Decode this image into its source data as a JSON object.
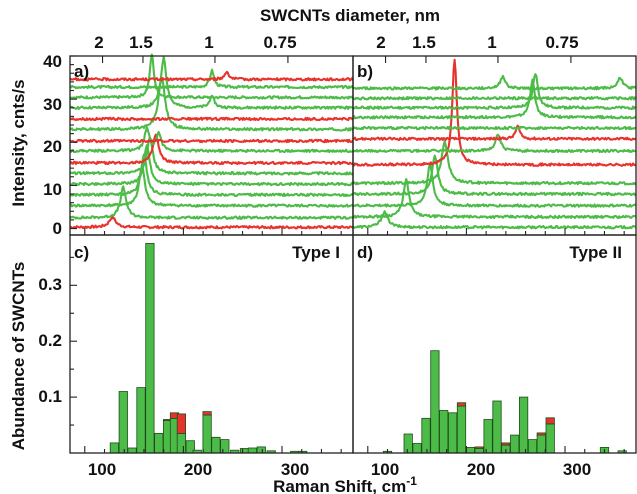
{
  "colors": {
    "green": "#4cbb47",
    "red": "#e8322c",
    "bar_edge": "#1f4d1c",
    "axis": "#222222"
  },
  "chart_data": [
    {
      "type": "line",
      "panel": "a)",
      "xlabel": "",
      "ylabel": "Intensity, cnts/s",
      "top_axis_title": "SWCNTs diameter, nm",
      "top_ticks": [
        "2",
        "1.5",
        "1",
        "0.75"
      ],
      "top_tick_positions_cm": [
        118,
        159,
        232,
        306
      ],
      "xlim": [
        85,
        372
      ],
      "ylim": [
        -1.5,
        40
      ],
      "y_ticks": [
        "0",
        "10",
        "20",
        "30",
        "40"
      ],
      "series": [
        {
          "color": "red",
          "baseline": 0.3,
          "peaks": [
            [
              128,
              2.3,
              4
            ]
          ]
        },
        {
          "color": "green",
          "baseline": 2.5,
          "peaks": [
            [
              139,
              7,
              3.5
            ]
          ]
        },
        {
          "color": "green",
          "baseline": 5.3,
          "peaks": [
            [
              158,
              9,
              3.5
            ]
          ]
        },
        {
          "color": "green",
          "baseline": 7.8,
          "peaks": [
            [
              160,
              9.5,
              3.5
            ]
          ]
        },
        {
          "color": "green",
          "baseline": 10.3,
          "peaks": [
            [
              163,
              9,
              3.5
            ]
          ]
        },
        {
          "color": "green",
          "baseline": 12.8,
          "peaks": [
            [
              166,
              8.5,
              3.5
            ]
          ]
        },
        {
          "color": "red",
          "baseline": 15.2,
          "peaks": [
            [
              172,
              6.5,
              3.5
            ]
          ]
        },
        {
          "color": "green",
          "baseline": 18.0,
          "peaks": [
            [
              163,
              5,
              3
            ],
            [
              175,
              4,
              3
            ]
          ]
        },
        {
          "color": "red",
          "baseline": 20.3,
          "peaks": []
        },
        {
          "color": "green",
          "baseline": 23.0,
          "peaks": [
            [
              178,
              12,
              4
            ]
          ]
        },
        {
          "color": "red",
          "baseline": 25.4,
          "peaks": []
        },
        {
          "color": "green",
          "baseline": 28.0,
          "peaks": [
            [
              180,
              11.5,
              3.5
            ],
            [
              229,
              3,
              2.5
            ]
          ]
        },
        {
          "color": "green",
          "baseline": 30.4,
          "peaks": [
            [
              168,
              10,
              2.5
            ]
          ]
        },
        {
          "color": "green",
          "baseline": 32.8,
          "peaks": [
            [
              229,
              3.8,
              2.5
            ]
          ]
        },
        {
          "color": "red",
          "baseline": 34.6,
          "peaks": [
            [
              244,
              1.8,
              2.5
            ]
          ]
        }
      ]
    },
    {
      "type": "line",
      "panel": "b)",
      "xlabel": "",
      "ylabel": "",
      "top_axis_title": "SWCNTs diameter, nm",
      "top_ticks": [
        "2",
        "1.5",
        "1",
        "0.75"
      ],
      "top_tick_positions_cm": [
        118,
        159,
        232,
        306
      ],
      "xlim": [
        85,
        372
      ],
      "ylim": [
        -1.5,
        40
      ],
      "series": [
        {
          "color": "green",
          "baseline": 0.3,
          "peaks": [
            [
              117,
              3.5,
              4
            ]
          ]
        },
        {
          "color": "green",
          "baseline": 2.7,
          "peaks": [
            [
              139,
              8.5,
              3.5
            ]
          ]
        },
        {
          "color": "green",
          "baseline": 5.3,
          "peaks": [
            [
              163,
              9.5,
              3.5
            ]
          ]
        },
        {
          "color": "green",
          "baseline": 8.0,
          "peaks": [
            [
              168,
              9,
              3.5
            ]
          ]
        },
        {
          "color": "green",
          "baseline": 10.5,
          "peaks": [
            [
              178,
              9.5,
              4
            ]
          ]
        },
        {
          "color": "red",
          "baseline": 14.8,
          "peaks": [
            [
              188,
              24.5,
              2.8
            ]
          ]
        },
        {
          "color": "green",
          "baseline": 18.0,
          "peaks": [
            [
              232,
              4,
              3
            ]
          ]
        },
        {
          "color": "red",
          "baseline": 20.8,
          "peaks": [
            [
              252,
              3,
              2.5
            ]
          ]
        },
        {
          "color": "green",
          "baseline": 23.3,
          "peaks": []
        },
        {
          "color": "green",
          "baseline": 25.8,
          "peaks": [
            [
              267,
              8.5,
              3
            ]
          ]
        },
        {
          "color": "green",
          "baseline": 28.0,
          "peaks": [
            [
              270,
              8,
              3
            ]
          ]
        },
        {
          "color": "green",
          "baseline": 30.2,
          "peaks": []
        },
        {
          "color": "green",
          "baseline": 32.5,
          "peaks": [
            [
              237,
              2.8,
              3
            ],
            [
              356,
              2.5,
              3
            ]
          ]
        }
      ]
    },
    {
      "type": "bar",
      "panel": "c)",
      "title": "Type I",
      "xlabel": "Raman Shift, cm-1",
      "ylabel": "Abundance of SWCNTs",
      "xlim": [
        85,
        372
      ],
      "ylim": [
        0,
        0.39
      ],
      "x_ticks": [
        100,
        200,
        300
      ],
      "y_ticks": [
        0.1,
        0.2,
        0.3
      ],
      "bar_width_cm": 8.5,
      "bars": [
        {
          "x": 130,
          "green": 0.018,
          "red": 0.0
        },
        {
          "x": 139,
          "green": 0.11,
          "red": 0.0
        },
        {
          "x": 148,
          "green": 0.009,
          "red": 0.0
        },
        {
          "x": 157,
          "green": 0.117,
          "red": 0.0
        },
        {
          "x": 166,
          "green": 0.375,
          "red": 0.0
        },
        {
          "x": 175,
          "green": 0.035,
          "red": 0.0
        },
        {
          "x": 184,
          "green": 0.058,
          "red": 0.002
        },
        {
          "x": 191,
          "green": 0.062,
          "red": 0.01
        },
        {
          "x": 198,
          "green": 0.035,
          "red": 0.035
        },
        {
          "x": 207,
          "green": 0.022,
          "red": 0.0
        },
        {
          "x": 214,
          "green": 0.005,
          "red": 0.0
        },
        {
          "x": 224,
          "green": 0.068,
          "red": 0.006
        },
        {
          "x": 233,
          "green": 0.028,
          "red": 0.0
        },
        {
          "x": 242,
          "green": 0.024,
          "red": 0.0
        },
        {
          "x": 252,
          "green": 0.005,
          "red": 0.0
        },
        {
          "x": 262,
          "green": 0.008,
          "red": 0.0
        },
        {
          "x": 270,
          "green": 0.009,
          "red": 0.0
        },
        {
          "x": 279,
          "green": 0.011,
          "red": 0.0
        },
        {
          "x": 289,
          "green": 0.004,
          "red": 0.0
        },
        {
          "x": 313,
          "green": 0.003,
          "red": 0.0
        },
        {
          "x": 321,
          "green": 0.003,
          "red": 0.0
        }
      ]
    },
    {
      "type": "bar",
      "panel": "d)",
      "title": "Type II",
      "xlabel": "Raman Shift, cm-1",
      "ylabel": "",
      "xlim": [
        85,
        372
      ],
      "ylim": [
        0,
        0.39
      ],
      "x_ticks": [
        100,
        200,
        300
      ],
      "bar_width_cm": 8.5,
      "bars": [
        {
          "x": 120,
          "green": 0.003,
          "red": 0.0
        },
        {
          "x": 141,
          "green": 0.034,
          "red": 0.0
        },
        {
          "x": 150,
          "green": 0.017,
          "red": 0.0
        },
        {
          "x": 159,
          "green": 0.062,
          "red": 0.0
        },
        {
          "x": 168,
          "green": 0.183,
          "red": 0.0
        },
        {
          "x": 177,
          "green": 0.076,
          "red": 0.0
        },
        {
          "x": 186,
          "green": 0.072,
          "red": 0.0
        },
        {
          "x": 195,
          "green": 0.084,
          "red": 0.006
        },
        {
          "x": 204,
          "green": 0.01,
          "red": 0.0
        },
        {
          "x": 213,
          "green": 0.008,
          "red": 0.003
        },
        {
          "x": 222,
          "green": 0.06,
          "red": 0.0
        },
        {
          "x": 231,
          "green": 0.093,
          "red": 0.0
        },
        {
          "x": 240,
          "green": 0.014,
          "red": 0.004
        },
        {
          "x": 249,
          "green": 0.032,
          "red": 0.0
        },
        {
          "x": 258,
          "green": 0.1,
          "red": 0.0
        },
        {
          "x": 267,
          "green": 0.024,
          "red": 0.0
        },
        {
          "x": 276,
          "green": 0.032,
          "red": 0.004
        },
        {
          "x": 285,
          "green": 0.052,
          "red": 0.011
        },
        {
          "x": 340,
          "green": 0.01,
          "red": 0.0
        },
        {
          "x": 358,
          "green": 0.004,
          "red": 0.0
        }
      ]
    }
  ],
  "labels": {
    "top_title": "SWCNTs diameter, nm",
    "y_label_top": "Intensity, cnts/s",
    "y_label_bottom": "Abundance of SWCNTs",
    "x_label_main": "Raman Shift, cm",
    "x_label_sup": "-1",
    "panel_a": "a)",
    "panel_b": "b)",
    "panel_c": "c)",
    "panel_d": "d)",
    "type_c": "Type I",
    "type_d": "Type II",
    "top_tick_labels": [
      "2",
      "1.5",
      "1",
      "0.75"
    ],
    "y_ticks_top": [
      "0",
      "10",
      "20",
      "30",
      "40"
    ],
    "y_ticks_bottom": [
      "0.1",
      "0.2",
      "0.3"
    ],
    "x_ticks_bottom": [
      "100",
      "200",
      "300"
    ]
  }
}
